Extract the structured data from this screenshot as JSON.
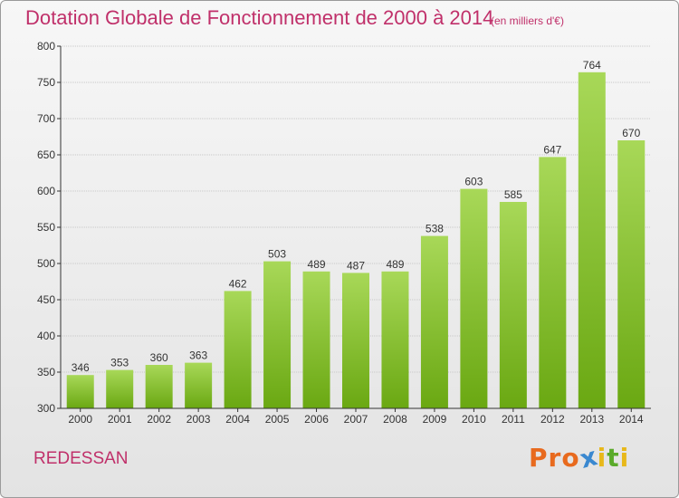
{
  "header": {
    "title": "Dotation Globale de Fonctionnement de 2000 à 2014",
    "subtitle": "(en milliers d'€)"
  },
  "footer": {
    "commune": "REDESSAN",
    "brand": "Proxiti",
    "brand_letters": [
      "P",
      "r",
      "o",
      "x",
      "i",
      "t",
      "i"
    ],
    "brand_colors": [
      "#e86a1e",
      "#e86a1e",
      "#e86a1e",
      "#3a88d0",
      "#e8b81a",
      "#5aaa2a",
      "#e8b81a"
    ]
  },
  "colors": {
    "title": "#c0306a",
    "bar_light": "#a8d858",
    "bar_dark": "#6aa812",
    "axis": "#333333",
    "grid": "#c8c8c8"
  },
  "chart_data": {
    "type": "bar",
    "title": "Dotation Globale de Fonctionnement de 2000 à 2014",
    "subtitle": "(en milliers d'€)",
    "xlabel": "",
    "ylabel": "",
    "categories": [
      "2000",
      "2001",
      "2002",
      "2003",
      "2004",
      "2005",
      "2006",
      "2007",
      "2008",
      "2009",
      "2010",
      "2011",
      "2012",
      "2013",
      "2014"
    ],
    "values": [
      346,
      353,
      360,
      363,
      462,
      503,
      489,
      487,
      489,
      538,
      603,
      585,
      647,
      764,
      670
    ],
    "ylim": [
      300,
      800
    ],
    "yticks": [
      300,
      350,
      400,
      450,
      500,
      550,
      600,
      650,
      700,
      750,
      800
    ],
    "grid": "horizontal",
    "data_labels": true
  }
}
